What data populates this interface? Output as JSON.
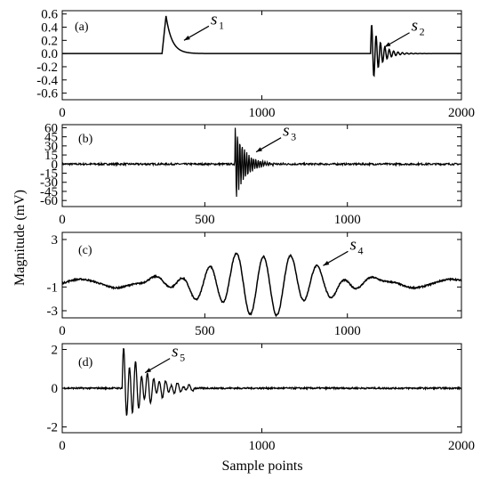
{
  "figure": {
    "ylabel": "Magnitude (mV)",
    "xlabel": "Sample points"
  },
  "chart_data": [
    {
      "type": "line",
      "panel": "(a)",
      "xlim": [
        0,
        2000
      ],
      "ylim": [
        -0.7,
        0.65
      ],
      "x_ticks": [
        0,
        1000,
        2000
      ],
      "y_ticks": [
        0.6,
        0.4,
        0.2,
        0.0,
        -0.2,
        -0.4,
        -0.6
      ],
      "x_tick_labels": [
        "0",
        "1000",
        "2000"
      ],
      "y_tick_labels": [
        "0.6",
        "0.4",
        "0.2",
        "0.0",
        "-0.2",
        "-0.4",
        "-0.6"
      ],
      "annotations": [
        {
          "label": "s",
          "sub": "1",
          "at": [
            610,
            0.2
          ]
        },
        {
          "label": "s",
          "sub": "2",
          "at": [
            1615,
            0.1
          ]
        }
      ],
      "series": [
        {
          "signal": "pulse",
          "start": 500,
          "peak": 0.57,
          "rise": 20,
          "decay": 30
        },
        {
          "signal": "ringdown",
          "start": 1545,
          "amp": 0.5,
          "period": 22,
          "decay": 45
        }
      ]
    },
    {
      "type": "line",
      "panel": "(b)",
      "xlim": [
        0,
        1400
      ],
      "ylim": [
        -70,
        65
      ],
      "x_ticks": [
        0,
        500,
        1000
      ],
      "y_ticks": [
        60,
        45,
        30,
        15,
        0,
        -15,
        -30,
        -45,
        -60
      ],
      "x_tick_labels": [
        "0",
        "500",
        "1000"
      ],
      "y_tick_labels": [
        "60",
        "45",
        "30",
        "15",
        "0",
        "-15",
        "-30",
        "-45",
        "-60"
      ],
      "annotations": [
        {
          "label": "s",
          "sub": "3",
          "at": [
            680,
            20
          ]
        }
      ],
      "series": [
        {
          "signal": "ringdown",
          "start": 605,
          "amp": 65,
          "period": 8,
          "decay": 35,
          "noise": 1.5
        }
      ]
    },
    {
      "type": "line",
      "panel": "(c)",
      "xlim": [
        0,
        1400
      ],
      "ylim": [
        -3.6,
        3.6
      ],
      "x_ticks": [
        0,
        500,
        1000
      ],
      "y_ticks": [
        3,
        -1,
        -3
      ],
      "x_tick_labels": [
        "0",
        "500",
        "1000"
      ],
      "y_tick_labels": [
        "3",
        "-1",
        "-3"
      ],
      "annotations": [
        {
          "label": "s",
          "sub": "4",
          "at": [
            915,
            0.8
          ]
        }
      ],
      "series": [
        {
          "signal": "wavepacket",
          "center": 700,
          "amp": 2.6,
          "period": 95,
          "width": 170,
          "baseline": -0.7,
          "noise": 0.06
        }
      ]
    },
    {
      "type": "line",
      "panel": "(d)",
      "xlim": [
        0,
        2000
      ],
      "ylim": [
        -2.3,
        2.3
      ],
      "x_ticks": [
        0,
        1000,
        2000
      ],
      "y_ticks": [
        2,
        0,
        -2
      ],
      "x_tick_labels": [
        "0",
        "1000",
        "2000"
      ],
      "y_tick_labels": [
        "2",
        "0",
        "-2"
      ],
      "annotations": [
        {
          "label": "s",
          "sub": "5",
          "at": [
            415,
            0.8
          ]
        }
      ],
      "series": [
        {
          "signal": "burst",
          "start": 300,
          "amp": 1.9,
          "period": 30,
          "decay": 120,
          "noise": 0.04
        }
      ]
    }
  ]
}
